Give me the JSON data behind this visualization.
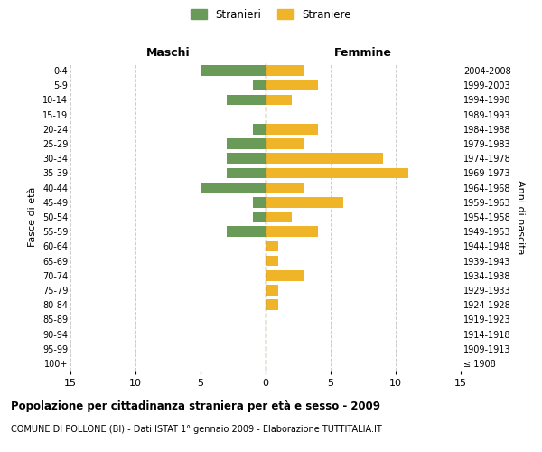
{
  "age_groups": [
    "100+",
    "95-99",
    "90-94",
    "85-89",
    "80-84",
    "75-79",
    "70-74",
    "65-69",
    "60-64",
    "55-59",
    "50-54",
    "45-49",
    "40-44",
    "35-39",
    "30-34",
    "25-29",
    "20-24",
    "15-19",
    "10-14",
    "5-9",
    "0-4"
  ],
  "birth_years": [
    "≤ 1908",
    "1909-1913",
    "1914-1918",
    "1919-1923",
    "1924-1928",
    "1929-1933",
    "1934-1938",
    "1939-1943",
    "1944-1948",
    "1949-1953",
    "1954-1958",
    "1959-1963",
    "1964-1968",
    "1969-1973",
    "1974-1978",
    "1979-1983",
    "1984-1988",
    "1989-1993",
    "1994-1998",
    "1999-2003",
    "2004-2008"
  ],
  "males": [
    0,
    0,
    0,
    0,
    0,
    0,
    0,
    0,
    0,
    3,
    1,
    1,
    5,
    3,
    3,
    3,
    1,
    0,
    3,
    1,
    5
  ],
  "females": [
    0,
    0,
    0,
    0,
    1,
    1,
    3,
    1,
    1,
    4,
    2,
    6,
    3,
    11,
    9,
    3,
    4,
    0,
    2,
    4,
    3
  ],
  "male_color": "#6a9a58",
  "female_color": "#f0b429",
  "background_color": "#ffffff",
  "grid_color": "#cccccc",
  "center_line_color": "#888855",
  "xlim": 15,
  "title": "Popolazione per cittadinanza straniera per età e sesso - 2009",
  "subtitle": "COMUNE DI POLLONE (BI) - Dati ISTAT 1° gennaio 2009 - Elaborazione TUTTITALIA.IT",
  "ylabel_left": "Fasce di età",
  "ylabel_right": "Anni di nascita",
  "header_left": "Maschi",
  "header_right": "Femmine",
  "legend_stranieri": "Stranieri",
  "legend_straniere": "Straniere"
}
